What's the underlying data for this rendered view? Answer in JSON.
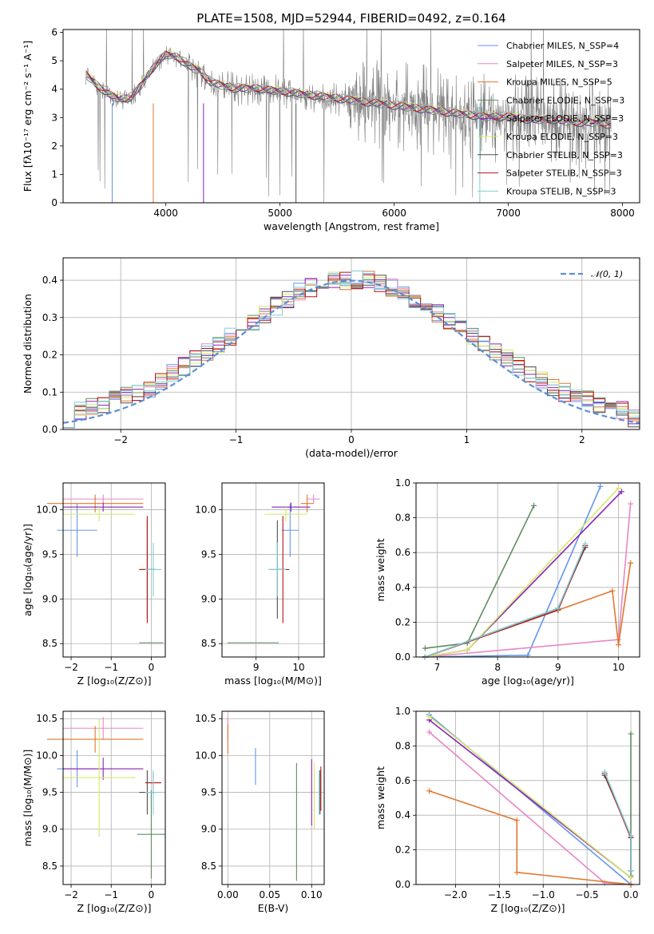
{
  "colors": {
    "chabrier_miles": "#6495ed",
    "salpeter_miles": "#ea86c3",
    "kroupa_miles": "#e0782e",
    "chabrier_elodie": "#5f8d61",
    "salpeter_elodie": "#8b22b6",
    "kroupa_elodie": "#d4e86a",
    "chabrier_stelib": "#4f4f4f",
    "salpeter_stelib": "#b41414",
    "kroupa_stelib": "#7fcfd6",
    "observed": "#808080",
    "normal": "#5b8fd6"
  },
  "chart_data": [
    {
      "id": "spectrum",
      "type": "line",
      "title": "PLATE=1508, MJD=52944, FIBERID=0492, z=0.164",
      "xlabel": "wavelength [Angstrom, rest frame]",
      "ylabel": "Flux [fλ10⁻¹⁷ erg cm⁻² s⁻¹ A⁻¹]",
      "xlim": [
        3100,
        8150
      ],
      "ylim": [
        0,
        6.1
      ],
      "xticks": [
        4000,
        5000,
        6000,
        7000,
        8000
      ],
      "yticks": [
        0,
        1,
        2,
        3,
        4,
        5,
        6
      ],
      "grid": false,
      "legend_position": "top-right",
      "legend": [
        {
          "text": "Chabrier MILES, N_SSP=4",
          "color_key": "chabrier_miles"
        },
        {
          "text": "Salpeter MILES, N_SSP=3",
          "color_key": "salpeter_miles"
        },
        {
          "text": "Kroupa MILES, N_SSP=5",
          "color_key": "kroupa_miles"
        },
        {
          "text": "Chabrier ELODIE, N_SSP=3",
          "color_key": "chabrier_elodie"
        },
        {
          "text": "Salpeter ELODIE, N_SSP=3",
          "color_key": "salpeter_elodie"
        },
        {
          "text": "Kroupa ELODIE, N_SSP=3",
          "color_key": "kroupa_elodie"
        },
        {
          "text": "Chabrier STELIB, N_SSP=3",
          "color_key": "chabrier_stelib"
        },
        {
          "text": "Salpeter STELIB, N_SSP=3",
          "color_key": "salpeter_stelib"
        },
        {
          "text": "Kroupa STELIB, N_SSP=3",
          "color_key": "kroupa_stelib"
        }
      ],
      "continuum": {
        "x": [
          3300,
          3400,
          3500,
          3600,
          3700,
          3800,
          3900,
          4000,
          4100,
          4200,
          4300,
          4400,
          4600,
          4800,
          5000,
          5200,
          5400,
          5600,
          5800,
          6000,
          6200,
          6400,
          6600,
          6800,
          7000,
          7200,
          7400,
          7600,
          7800,
          7900
        ],
        "y": [
          4.5,
          4.1,
          3.8,
          3.6,
          3.7,
          4.2,
          4.8,
          5.2,
          5.1,
          4.8,
          4.6,
          4.2,
          4.0,
          4.0,
          3.9,
          3.8,
          3.7,
          3.6,
          3.5,
          3.4,
          3.3,
          3.2,
          3.1,
          3.0,
          3.0,
          2.9,
          2.9,
          2.8,
          2.8,
          2.7
        ]
      }
    },
    {
      "id": "residuals",
      "type": "histogram",
      "xlabel": "(data-model)/error",
      "ylabel": "Normed distribution",
      "xlim": [
        -2.5,
        2.5
      ],
      "ylim": [
        0,
        0.46
      ],
      "xticks": [
        -2,
        -1,
        0,
        1,
        2
      ],
      "yticks": [
        0.0,
        0.1,
        0.2,
        0.3,
        0.4
      ],
      "grid": true,
      "legend_position": "top-right",
      "legend": [
        {
          "text": "𝒩(0, 1)",
          "color_key": "normal"
        }
      ],
      "bin_width": 0.1,
      "mean_values": [
        0.03,
        0.05,
        0.06,
        0.07,
        0.08,
        0.09,
        0.1,
        0.11,
        0.13,
        0.15,
        0.17,
        0.19,
        0.21,
        0.23,
        0.25,
        0.27,
        0.29,
        0.31,
        0.33,
        0.35,
        0.37,
        0.38,
        0.39,
        0.4,
        0.4,
        0.4,
        0.4,
        0.39,
        0.38,
        0.37,
        0.35,
        0.33,
        0.31,
        0.29,
        0.27,
        0.25,
        0.23,
        0.21,
        0.19,
        0.17,
        0.15,
        0.13,
        0.11,
        0.1,
        0.09,
        0.08,
        0.07,
        0.06,
        0.05,
        0.03
      ]
    },
    {
      "id": "age-vs-z",
      "type": "scatter-errorbar",
      "xlabel": "Z [log₁₀(Z/Z⊙)]",
      "ylabel": "age  [log₁₀(age/yr)]",
      "xlim": [
        -2.2,
        0.35
      ],
      "ylim": [
        8.35,
        10.3
      ],
      "xticks": [
        -2,
        -1,
        0
      ],
      "yticks": [
        8.5,
        9.0,
        9.5,
        10.0
      ],
      "grid": true,
      "points": [
        {
          "x": -1.85,
          "y": 9.77,
          "xerr": 0.5,
          "yerr": 0.3,
          "color_key": "chabrier_miles"
        },
        {
          "x": -1.2,
          "y": 10.12,
          "xerr": 1.0,
          "yerr": 0.05,
          "color_key": "salpeter_miles"
        },
        {
          "x": -1.4,
          "y": 10.07,
          "xerr": 1.2,
          "yerr": 0.1,
          "color_key": "kroupa_miles"
        },
        {
          "x": 0.0,
          "y": 8.51,
          "xerr": 0.3,
          "yerr": 0.0,
          "color_key": "chabrier_elodie"
        },
        {
          "x": -1.2,
          "y": 10.03,
          "xerr": 1.0,
          "yerr": 0.05,
          "color_key": "salpeter_elodie"
        },
        {
          "x": -1.3,
          "y": 9.95,
          "xerr": 0.9,
          "yerr": 0.08,
          "color_key": "kroupa_elodie"
        },
        {
          "x": -0.1,
          "y": 9.33,
          "xerr": 0.2,
          "yerr": 0.55,
          "color_key": "chabrier_stelib"
        },
        {
          "x": -0.1,
          "y": 9.33,
          "xerr": 0.2,
          "yerr": 0.6,
          "color_key": "salpeter_stelib"
        },
        {
          "x": 0.05,
          "y": 9.33,
          "xerr": 0.2,
          "yerr": 0.3,
          "color_key": "kroupa_stelib"
        }
      ]
    },
    {
      "id": "age-vs-mass",
      "type": "scatter-errorbar",
      "xlabel": "mass [log₁₀(M/M⊙)]",
      "ylabel": "",
      "xlim": [
        8.2,
        10.6
      ],
      "ylim": [
        8.35,
        10.3
      ],
      "xticks": [
        9,
        10
      ],
      "yticks": [
        8.5,
        9.0,
        9.5,
        10.0
      ],
      "grid": true,
      "points": [
        {
          "x": 9.8,
          "y": 9.77,
          "xerr": 0.2,
          "yerr": 0.3,
          "color_key": "chabrier_miles"
        },
        {
          "x": 10.35,
          "y": 10.12,
          "xerr": 0.15,
          "yerr": 0.05,
          "color_key": "salpeter_miles"
        },
        {
          "x": 10.2,
          "y": 10.07,
          "xerr": 0.15,
          "yerr": 0.1,
          "color_key": "kroupa_miles"
        },
        {
          "x": 8.93,
          "y": 8.51,
          "xerr": 0.6,
          "yerr": 0.0,
          "color_key": "chabrier_elodie"
        },
        {
          "x": 9.82,
          "y": 10.03,
          "xerr": 0.45,
          "yerr": 0.05,
          "color_key": "salpeter_elodie"
        },
        {
          "x": 9.7,
          "y": 9.95,
          "xerr": 0.5,
          "yerr": 0.08,
          "color_key": "kroupa_elodie"
        },
        {
          "x": 9.5,
          "y": 9.33,
          "xerr": 0.2,
          "yerr": 0.55,
          "color_key": "chabrier_stelib"
        },
        {
          "x": 9.63,
          "y": 9.33,
          "xerr": 0.15,
          "yerr": 0.6,
          "color_key": "salpeter_stelib"
        },
        {
          "x": 9.5,
          "y": 9.33,
          "xerr": 0.2,
          "yerr": 0.3,
          "color_key": "kroupa_stelib"
        }
      ]
    },
    {
      "id": "mass-weight-vs-age",
      "type": "line",
      "xlabel": "age  [log₁₀(age/yr)]",
      "ylabel": "mass weight",
      "xlim": [
        6.65,
        10.35
      ],
      "ylim": [
        0,
        1.0
      ],
      "xticks": [
        7,
        8,
        9,
        10
      ],
      "yticks": [
        0.0,
        0.2,
        0.4,
        0.6,
        0.8,
        1.0
      ],
      "grid": true,
      "series": [
        {
          "color_key": "chabrier_miles",
          "x": [
            6.8,
            8.5,
            9.7
          ],
          "y": [
            0.0,
            0.01,
            0.98
          ]
        },
        {
          "color_key": "salpeter_miles",
          "x": [
            6.8,
            10.0,
            10.2
          ],
          "y": [
            0.0,
            0.1,
            0.88
          ]
        },
        {
          "color_key": "kroupa_miles",
          "x": [
            6.8,
            9.9,
            10.0,
            10.2
          ],
          "y": [
            0.0,
            0.38,
            0.07,
            0.54
          ]
        },
        {
          "color_key": "chabrier_elodie",
          "x": [
            6.8,
            7.5,
            8.6
          ],
          "y": [
            0.05,
            0.08,
            0.87
          ]
        },
        {
          "color_key": "salpeter_elodie",
          "x": [
            6.8,
            7.5,
            10.05
          ],
          "y": [
            0.0,
            0.04,
            0.95
          ]
        },
        {
          "color_key": "kroupa_elodie",
          "x": [
            6.8,
            7.5,
            10.0
          ],
          "y": [
            0.0,
            0.04,
            0.97
          ]
        },
        {
          "color_key": "chabrier_stelib",
          "x": [
            6.8,
            9.0,
            9.45
          ],
          "y": [
            0.0,
            0.28,
            0.63
          ]
        },
        {
          "color_key": "salpeter_stelib",
          "x": [
            6.8,
            9.0,
            9.45
          ],
          "y": [
            0.0,
            0.27,
            0.64
          ]
        },
        {
          "color_key": "kroupa_stelib",
          "x": [
            6.8,
            9.0,
            9.45
          ],
          "y": [
            0.0,
            0.28,
            0.65
          ]
        }
      ]
    },
    {
      "id": "mass-vs-z",
      "type": "scatter-errorbar",
      "xlabel": "Z [log₁₀(Z/Z⊙)]",
      "ylabel": "mass [log₁₀(M/M⊙)]",
      "xlim": [
        -2.2,
        0.35
      ],
      "ylim": [
        8.25,
        10.6
      ],
      "xticks": [
        -2,
        -1,
        0
      ],
      "yticks": [
        8.5,
        9.0,
        9.5,
        10.0,
        10.5
      ],
      "grid": true,
      "points": [
        {
          "x": -1.85,
          "y": 9.82,
          "xerr": 0.5,
          "yerr": 0.25,
          "color_key": "chabrier_miles"
        },
        {
          "x": -1.2,
          "y": 10.37,
          "xerr": 1.0,
          "yerr": 0.15,
          "color_key": "salpeter_miles"
        },
        {
          "x": -1.4,
          "y": 10.22,
          "xerr": 1.2,
          "yerr": 0.18,
          "color_key": "kroupa_miles"
        },
        {
          "x": 0.0,
          "y": 8.93,
          "xerr": 0.35,
          "yerr": 0.6,
          "color_key": "chabrier_elodie"
        },
        {
          "x": -1.2,
          "y": 9.82,
          "xerr": 1.0,
          "yerr": 0.15,
          "color_key": "salpeter_elodie"
        },
        {
          "x": -1.3,
          "y": 9.7,
          "xerr": 0.9,
          "yerr": 0.8,
          "color_key": "kroupa_elodie"
        },
        {
          "x": -0.1,
          "y": 9.5,
          "xerr": 0.2,
          "yerr": 0.3,
          "color_key": "chabrier_stelib"
        },
        {
          "x": 0.05,
          "y": 9.63,
          "xerr": 0.2,
          "yerr": 0.15,
          "color_key": "salpeter_stelib"
        },
        {
          "x": 0.05,
          "y": 9.5,
          "xerr": 0.2,
          "yerr": 0.3,
          "color_key": "kroupa_stelib"
        }
      ]
    },
    {
      "id": "mass-vs-ebv",
      "type": "scatter-errorbar",
      "xlabel": "E(B-V)",
      "ylabel": "",
      "xlim": [
        -0.007,
        0.115
      ],
      "ylim": [
        8.25,
        10.6
      ],
      "xticks": [
        0.0,
        0.05,
        0.1
      ],
      "xticklabels": [
        "0.00",
        "0.05",
        "0.10"
      ],
      "yticks": [
        8.5,
        9.0,
        9.5,
        10.0,
        10.5
      ],
      "grid": true,
      "points": [
        {
          "x": 0.033,
          "y": 9.85,
          "xerr": 0.0,
          "yerr": 0.25,
          "color_key": "chabrier_miles"
        },
        {
          "x": 0.0,
          "y": 10.37,
          "xerr": 0.0,
          "yerr": 0.15,
          "color_key": "salpeter_miles"
        },
        {
          "x": 0.0,
          "y": 10.22,
          "xerr": 0.0,
          "yerr": 0.2,
          "color_key": "kroupa_miles"
        },
        {
          "x": 0.082,
          "y": 9.1,
          "xerr": 0.0,
          "yerr": 0.8,
          "color_key": "chabrier_elodie"
        },
        {
          "x": 0.1,
          "y": 9.5,
          "xerr": 0.0,
          "yerr": 0.45,
          "color_key": "salpeter_elodie"
        },
        {
          "x": 0.103,
          "y": 9.45,
          "xerr": 0.0,
          "yerr": 0.45,
          "color_key": "kroupa_elodie"
        },
        {
          "x": 0.11,
          "y": 9.5,
          "xerr": 0.0,
          "yerr": 0.3,
          "color_key": "chabrier_stelib"
        },
        {
          "x": 0.111,
          "y": 9.55,
          "xerr": 0.0,
          "yerr": 0.3,
          "color_key": "salpeter_stelib"
        },
        {
          "x": 0.109,
          "y": 9.5,
          "xerr": 0.0,
          "yerr": 0.3,
          "color_key": "kroupa_stelib"
        }
      ]
    },
    {
      "id": "mass-weight-vs-z",
      "type": "line",
      "xlabel": "Z [log₁₀(Z/Z⊙)]",
      "ylabel": "mass weight",
      "xlim": [
        -2.45,
        0.1
      ],
      "ylim": [
        0,
        1.0
      ],
      "xticks": [
        -2.0,
        -1.5,
        -1.0,
        -0.5,
        0.0
      ],
      "xticklabels": [
        "−2.0",
        "−1.5",
        "−1.0",
        "−0.5",
        "0.0"
      ],
      "yticks": [
        0.0,
        0.2,
        0.4,
        0.6,
        0.8,
        1.0
      ],
      "grid": true,
      "series": [
        {
          "color_key": "chabrier_miles",
          "x": [
            0.0,
            -2.3
          ],
          "y": [
            0.0,
            0.98
          ]
        },
        {
          "color_key": "salpeter_miles",
          "x": [
            0.0,
            -0.3,
            -2.3
          ],
          "y": [
            0.0,
            0.01,
            0.88
          ]
        },
        {
          "color_key": "kroupa_miles",
          "x": [
            0.0,
            -1.3,
            -1.3,
            -2.3
          ],
          "y": [
            0.0,
            0.07,
            0.37,
            0.54
          ]
        },
        {
          "color_key": "chabrier_elodie",
          "x": [
            0.0,
            0.0,
            0.0
          ],
          "y": [
            0.05,
            0.08,
            0.87
          ]
        },
        {
          "color_key": "salpeter_elodie",
          "x": [
            0.0,
            -2.3
          ],
          "y": [
            0.04,
            0.95
          ]
        },
        {
          "color_key": "kroupa_elodie",
          "x": [
            0.0,
            -2.3
          ],
          "y": [
            0.04,
            0.97
          ]
        },
        {
          "color_key": "chabrier_stelib",
          "x": [
            0.0,
            0.0,
            -0.3
          ],
          "y": [
            0.08,
            0.28,
            0.63
          ]
        },
        {
          "color_key": "salpeter_stelib",
          "x": [
            0.0,
            0.0,
            -0.3
          ],
          "y": [
            0.08,
            0.27,
            0.64
          ]
        },
        {
          "color_key": "kroupa_stelib",
          "x": [
            0.0,
            0.0,
            -0.3
          ],
          "y": [
            0.08,
            0.28,
            0.65
          ]
        }
      ]
    }
  ]
}
